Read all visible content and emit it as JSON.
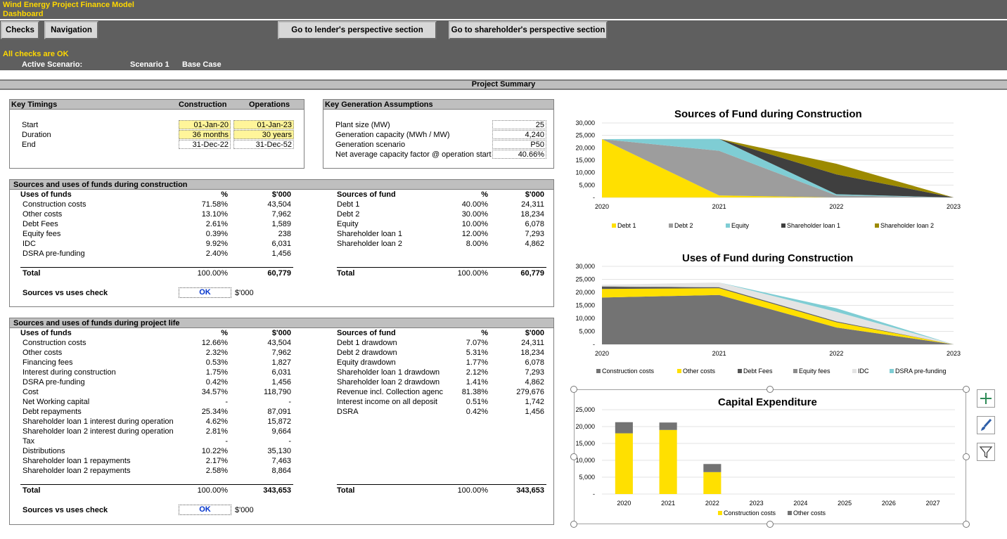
{
  "header": {
    "title": "Wind Energy Project Finance Model",
    "subtitle": "Dashboard",
    "buttons": {
      "checks": "Checks",
      "navigation": "Navigation",
      "lender": "Go to lender's perspective section",
      "shareholder": "Go to shareholder's perspective section"
    },
    "checks_status": "All checks are OK",
    "active_scenario_label": "Active Scenario:",
    "scenario_number": "Scenario 1",
    "scenario_name": "Base Case"
  },
  "summary_title": "Project Summary",
  "key_timings": {
    "title": "Key Timings",
    "col_construction": "Construction",
    "col_operations": "Operations",
    "rows": [
      {
        "label": "Start",
        "construction": "01-Jan-20",
        "operations": "01-Jan-23"
      },
      {
        "label": "Duration",
        "construction": "36 months",
        "operations": "30 years"
      },
      {
        "label": "End",
        "construction": "31-Dec-22",
        "operations": "31-Dec-52"
      }
    ]
  },
  "generation": {
    "title": "Key Generation Assumptions",
    "rows": [
      {
        "label": "Plant size (MW)",
        "value": "25"
      },
      {
        "label": "Generation capacity (MWh / MW)",
        "value": "4,240"
      },
      {
        "label": "Generation scenario",
        "value": "P50"
      },
      {
        "label": "Net average capacity factor @ operation start",
        "value": "40.66%"
      }
    ]
  },
  "construction_su": {
    "title": "Sources and uses of funds during construction",
    "uses_header": "Uses of funds",
    "sources_header": "Sources of fund",
    "pct_header": "%",
    "amt_header": "$'000",
    "uses": [
      {
        "label": "Construction costs",
        "pct": "71.58%",
        "amt": "43,504"
      },
      {
        "label": "Other costs",
        "pct": "13.10%",
        "amt": "7,962"
      },
      {
        "label": "Debt Fees",
        "pct": "2.61%",
        "amt": "1,589"
      },
      {
        "label": "Equity fees",
        "pct": "0.39%",
        "amt": "238"
      },
      {
        "label": "IDC",
        "pct": "9.92%",
        "amt": "6,031"
      },
      {
        "label": "DSRA pre-funding",
        "pct": "2.40%",
        "amt": "1,456"
      }
    ],
    "sources": [
      {
        "label": "Debt 1",
        "pct": "40.00%",
        "amt": "24,311"
      },
      {
        "label": "Debt 2",
        "pct": "30.00%",
        "amt": "18,234"
      },
      {
        "label": "Equity",
        "pct": "10.00%",
        "amt": "6,078"
      },
      {
        "label": "Shareholder loan 1",
        "pct": "12.00%",
        "amt": "7,293"
      },
      {
        "label": "Shareholder loan 2",
        "pct": "8.00%",
        "amt": "4,862"
      }
    ],
    "total_label": "Total",
    "uses_total_pct": "100.00%",
    "uses_total_amt": "60,779",
    "sources_total_pct": "100.00%",
    "sources_total_amt": "60,779",
    "check_label": "Sources vs uses check",
    "check_value": "OK",
    "check_unit": "$'000"
  },
  "life_su": {
    "title": "Sources and uses of funds during project life",
    "uses_header": "Uses of funds",
    "sources_header": "Sources of fund",
    "pct_header": "%",
    "amt_header": "$'000",
    "uses": [
      {
        "label": "Construction costs",
        "pct": "12.66%",
        "amt": "43,504"
      },
      {
        "label": "Other costs",
        "pct": "2.32%",
        "amt": "7,962"
      },
      {
        "label": "Financing fees",
        "pct": "0.53%",
        "amt": "1,827"
      },
      {
        "label": "Interest during construction",
        "pct": "1.75%",
        "amt": "6,031"
      },
      {
        "label": "DSRA pre-funding",
        "pct": "0.42%",
        "amt": "1,456"
      },
      {
        "label": "Cost",
        "pct": "34.57%",
        "amt": "118,790"
      },
      {
        "label": "Net Working capital",
        "pct": "-",
        "amt": "-"
      },
      {
        "label": "Debt repayments",
        "pct": "25.34%",
        "amt": "87,091"
      },
      {
        "label": "Shareholder loan 1 interest during operation",
        "pct": "4.62%",
        "amt": "15,872"
      },
      {
        "label": "Shareholder loan 2 interest during operation",
        "pct": "2.81%",
        "amt": "9,664"
      },
      {
        "label": "Tax",
        "pct": "-",
        "amt": "-"
      },
      {
        "label": "Distributions",
        "pct": "10.22%",
        "amt": "35,130"
      },
      {
        "label": "Shareholder loan 1 repayments",
        "pct": "2.17%",
        "amt": "7,463"
      },
      {
        "label": "Shareholder loan 2 repayments",
        "pct": "2.58%",
        "amt": "8,864"
      }
    ],
    "sources": [
      {
        "label": "Debt 1 drawdown",
        "pct": "7.07%",
        "amt": "24,311"
      },
      {
        "label": "Debt 2 drawdown",
        "pct": "5.31%",
        "amt": "18,234"
      },
      {
        "label": "Equity drawdown",
        "pct": "1.77%",
        "amt": "6,078"
      },
      {
        "label": "Shareholder loan 1 drawdown",
        "pct": "2.12%",
        "amt": "7,293"
      },
      {
        "label": "Shareholder loan 2 drawdown",
        "pct": "1.41%",
        "amt": "4,862"
      },
      {
        "label": "Revenue incl. Collection agenc",
        "pct": "81.38%",
        "amt": "279,676"
      },
      {
        "label": "Interest income on all deposit",
        "pct": "0.51%",
        "amt": "1,742"
      },
      {
        "label": "DSRA",
        "pct": "0.42%",
        "amt": "1,456"
      }
    ],
    "total_label": "Total",
    "uses_total_pct": "100.00%",
    "uses_total_amt": "343,653",
    "sources_total_pct": "100.00%",
    "sources_total_amt": "343,653",
    "check_label": "Sources vs uses check",
    "check_value": "OK",
    "check_unit": "$'000"
  },
  "colors": {
    "header_bg": "#5f5f5f",
    "accent_yellow": "#ffd800",
    "gray_dark": "#595959",
    "gray_mid": "#7f7f7f",
    "gray_light": "#a6a6a6",
    "teal": "#7fcdd4",
    "olive": "#9c8a00",
    "whiteish": "#e7e6e6"
  },
  "chart_data": [
    {
      "type": "area",
      "title": "Sources of Fund during Construction",
      "stacked": true,
      "x": [
        "2020",
        "2021",
        "2022",
        "2023"
      ],
      "ylim": [
        0,
        30000
      ],
      "yticks": [
        "30,000",
        "25,000",
        "20,000",
        "15,000",
        "10,000",
        "5,000",
        "-"
      ],
      "legend_position": "bottom",
      "series": [
        {
          "name": "Debt 1",
          "color": "#ffe000",
          "values": [
            23500,
            800,
            0,
            0
          ]
        },
        {
          "name": "Debt 2",
          "color": "#9d9d9d",
          "values": [
            0,
            18000,
            800,
            0
          ]
        },
        {
          "name": "Equity",
          "color": "#7fcdd4",
          "values": [
            0,
            4800,
            500,
            0
          ]
        },
        {
          "name": "Shareholder loan 1",
          "color": "#3f3f3f",
          "values": [
            0,
            0,
            8000,
            0
          ]
        },
        {
          "name": "Shareholder loan 2",
          "color": "#9c8a00",
          "values": [
            0,
            0,
            4300,
            0
          ]
        }
      ]
    },
    {
      "type": "area",
      "title": "Uses of Fund during Construction",
      "stacked": true,
      "x": [
        "2020",
        "2021",
        "2022",
        "2023"
      ],
      "ylim": [
        0,
        30000
      ],
      "yticks": [
        "30,000",
        "25,000",
        "20,000",
        "15,000",
        "10,000",
        "5,000",
        "-"
      ],
      "legend_position": "bottom",
      "series": [
        {
          "name": "Construction costs",
          "color": "#737373",
          "values": [
            18000,
            19000,
            6500,
            0
          ]
        },
        {
          "name": "Other costs",
          "color": "#ffe000",
          "values": [
            3300,
            2600,
            2000,
            0
          ]
        },
        {
          "name": "Debt Fees",
          "color": "#555555",
          "values": [
            900,
            300,
            300,
            0
          ]
        },
        {
          "name": "Equity fees",
          "color": "#8c8c8c",
          "values": [
            100,
            100,
            100,
            0
          ]
        },
        {
          "name": "IDC",
          "color": "#e4e4e4",
          "values": [
            600,
            1800,
            3600,
            0
          ]
        },
        {
          "name": "DSRA pre-funding",
          "color": "#7fcdd4",
          "values": [
            0,
            0,
            1400,
            0
          ]
        }
      ]
    },
    {
      "type": "bar",
      "title": "Capital Expenditure",
      "stacked": true,
      "categories": [
        "2020",
        "2021",
        "2022",
        "2023",
        "2024",
        "2025",
        "2026",
        "2027"
      ],
      "ylim": [
        0,
        25000
      ],
      "yticks": [
        "25,000",
        "20,000",
        "15,000",
        "10,000",
        "5,000",
        "-"
      ],
      "legend_position": "bottom",
      "series": [
        {
          "name": "Construction costs",
          "color": "#ffe000",
          "values": [
            18000,
            19000,
            6500,
            0,
            0,
            0,
            0,
            0
          ]
        },
        {
          "name": "Other costs",
          "color": "#737373",
          "values": [
            3300,
            2200,
            2400,
            0,
            0,
            0,
            0,
            0
          ]
        }
      ]
    }
  ]
}
